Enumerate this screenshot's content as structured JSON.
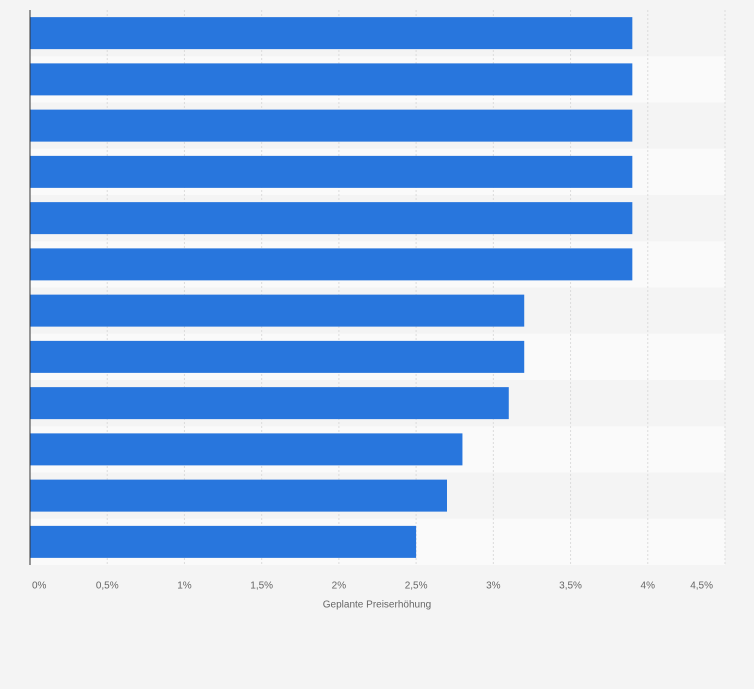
{
  "chart_data": {
    "type": "bar",
    "orientation": "horizontal",
    "xlabel": "Geplante Preiserhöhung",
    "categories": [
      null,
      null,
      null,
      null,
      null,
      null,
      null,
      null,
      null,
      null,
      null,
      null
    ],
    "values": [
      3.9,
      3.9,
      3.9,
      3.9,
      3.9,
      3.9,
      3.2,
      3.2,
      3.1,
      2.8,
      2.7,
      2.5
    ],
    "color": "#2876dd",
    "xlim": [
      0,
      4.5
    ],
    "xticks": [
      {
        "value": 0,
        "label": "0%"
      },
      {
        "value": 0.5,
        "label": "0,5%"
      },
      {
        "value": 1,
        "label": "1%"
      },
      {
        "value": 1.5,
        "label": "1,5%"
      },
      {
        "value": 2,
        "label": "2%"
      },
      {
        "value": 2.5,
        "label": "2,5%"
      },
      {
        "value": 3,
        "label": "3%"
      },
      {
        "value": 3.5,
        "label": "3,5%"
      },
      {
        "value": 4,
        "label": "4%"
      },
      {
        "value": 4.5,
        "label": "4,5%"
      }
    ],
    "grid": true
  }
}
